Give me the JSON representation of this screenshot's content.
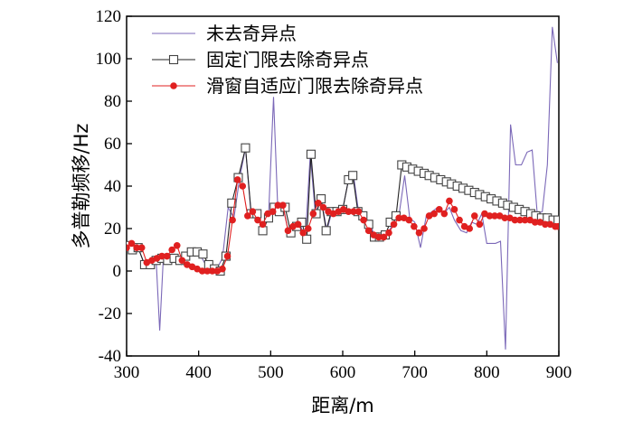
{
  "chart_data": {
    "type": "line",
    "title": "",
    "xlabel": "距离/m",
    "ylabel": "多普勒频移/Hz",
    "xlim": [
      300,
      900
    ],
    "ylim": [
      -40,
      120
    ],
    "x_ticks": [
      300,
      400,
      500,
      600,
      700,
      800,
      900
    ],
    "y_ticks": [
      -40,
      -20,
      0,
      20,
      40,
      60,
      80,
      100,
      120
    ],
    "grid": false,
    "legend_position": "top-left",
    "series": [
      {
        "name": "未去奇异点",
        "color": "#7b68b8",
        "marker": "none",
        "points": [
          [
            300,
            12
          ],
          [
            308,
            10
          ],
          [
            316,
            11
          ],
          [
            325,
            3
          ],
          [
            333,
            3
          ],
          [
            341,
            5
          ],
          [
            346,
            -28
          ],
          [
            351,
            6
          ],
          [
            359,
            5
          ],
          [
            368,
            7
          ],
          [
            376,
            3
          ],
          [
            384,
            6
          ],
          [
            392,
            9
          ],
          [
            400,
            9
          ],
          [
            408,
            4
          ],
          [
            416,
            3
          ],
          [
            425,
            1
          ],
          [
            433,
            6
          ],
          [
            441,
            30
          ],
          [
            449,
            25
          ],
          [
            457,
            44
          ],
          [
            465,
            58
          ],
          [
            473,
            26
          ],
          [
            481,
            27
          ],
          [
            489,
            19
          ],
          [
            497,
            25
          ],
          [
            504,
            82
          ],
          [
            510,
            28
          ],
          [
            517,
            30
          ],
          [
            525,
            18
          ],
          [
            533,
            21
          ],
          [
            540,
            23
          ],
          [
            548,
            15
          ],
          [
            555,
            55
          ],
          [
            562,
            27
          ],
          [
            570,
            34
          ],
          [
            578,
            19
          ],
          [
            585,
            28
          ],
          [
            592,
            28
          ],
          [
            600,
            29
          ],
          [
            608,
            43
          ],
          [
            615,
            45
          ],
          [
            622,
            28
          ],
          [
            630,
            26
          ],
          [
            638,
            22
          ],
          [
            645,
            16
          ],
          [
            653,
            16
          ],
          [
            661,
            16
          ],
          [
            670,
            23
          ],
          [
            678,
            26
          ],
          [
            686,
            45
          ],
          [
            693,
            25
          ],
          [
            700,
            23
          ],
          [
            708,
            11
          ],
          [
            716,
            26
          ],
          [
            724,
            28
          ],
          [
            732,
            30
          ],
          [
            740,
            27
          ],
          [
            748,
            30
          ],
          [
            755,
            24
          ],
          [
            764,
            19
          ],
          [
            772,
            18
          ],
          [
            779,
            23
          ],
          [
            786,
            22
          ],
          [
            793,
            27
          ],
          [
            800,
            13
          ],
          [
            806,
            13
          ],
          [
            812,
            13
          ],
          [
            819,
            14
          ],
          [
            826,
            -37
          ],
          [
            833,
            69
          ],
          [
            840,
            50
          ],
          [
            848,
            50
          ],
          [
            856,
            56
          ],
          [
            863,
            57
          ],
          [
            870,
            27
          ],
          [
            877,
            28
          ],
          [
            884,
            50
          ],
          [
            891,
            115
          ],
          [
            898,
            98
          ]
        ]
      },
      {
        "name": "固定门限去除奇异点",
        "color": "#222222",
        "marker": "square",
        "points": [
          [
            300,
            12
          ],
          [
            308,
            10
          ],
          [
            316,
            11
          ],
          [
            325,
            3
          ],
          [
            333,
            3
          ],
          [
            341,
            5
          ],
          [
            349,
            6
          ],
          [
            357,
            5
          ],
          [
            366,
            6
          ],
          [
            374,
            5
          ],
          [
            382,
            7
          ],
          [
            390,
            9
          ],
          [
            398,
            9
          ],
          [
            406,
            8
          ],
          [
            414,
            3
          ],
          [
            422,
            1
          ],
          [
            430,
            0
          ],
          [
            438,
            7
          ],
          [
            446,
            32
          ],
          [
            455,
            44
          ],
          [
            465,
            58
          ],
          [
            473,
            27
          ],
          [
            481,
            27
          ],
          [
            489,
            19
          ],
          [
            497,
            25
          ],
          [
            505,
            30
          ],
          [
            512,
            28
          ],
          [
            520,
            30
          ],
          [
            528,
            18
          ],
          [
            536,
            21
          ],
          [
            543,
            23
          ],
          [
            550,
            15
          ],
          [
            556,
            55
          ],
          [
            563,
            27
          ],
          [
            570,
            34
          ],
          [
            577,
            19
          ],
          [
            584,
            28
          ],
          [
            592,
            28
          ],
          [
            600,
            29
          ],
          [
            608,
            43
          ],
          [
            614,
            45
          ],
          [
            621,
            28
          ],
          [
            628,
            26
          ],
          [
            636,
            22
          ],
          [
            644,
            16
          ],
          [
            651,
            16
          ],
          [
            659,
            17
          ],
          [
            666,
            23
          ],
          [
            674,
            26
          ],
          [
            682,
            50
          ],
          [
            689,
            49
          ],
          [
            697,
            48
          ],
          [
            705,
            47
          ],
          [
            713,
            46
          ],
          [
            720,
            45
          ],
          [
            728,
            44
          ],
          [
            736,
            43
          ],
          [
            744,
            42
          ],
          [
            751,
            41
          ],
          [
            759,
            40
          ],
          [
            767,
            39
          ],
          [
            775,
            38
          ],
          [
            783,
            37
          ],
          [
            790,
            36
          ],
          [
            798,
            35
          ],
          [
            806,
            34
          ],
          [
            814,
            33
          ],
          [
            822,
            32
          ],
          [
            829,
            31
          ],
          [
            837,
            30
          ],
          [
            845,
            29
          ],
          [
            853,
            28
          ],
          [
            861,
            27
          ],
          [
            868,
            26
          ],
          [
            876,
            25
          ],
          [
            884,
            25
          ],
          [
            892,
            24
          ],
          [
            899,
            24
          ]
        ]
      },
      {
        "name": "滑窗自适应门限去除奇异点",
        "color": "#e02020",
        "marker": "circle",
        "points": [
          [
            300,
            11
          ],
          [
            307,
            13
          ],
          [
            314,
            11
          ],
          [
            321,
            11
          ],
          [
            328,
            4
          ],
          [
            335,
            5
          ],
          [
            342,
            6
          ],
          [
            349,
            7
          ],
          [
            356,
            7
          ],
          [
            363,
            10
          ],
          [
            370,
            12
          ],
          [
            377,
            5
          ],
          [
            384,
            3
          ],
          [
            391,
            2
          ],
          [
            398,
            1
          ],
          [
            405,
            0
          ],
          [
            412,
            0
          ],
          [
            419,
            0
          ],
          [
            426,
            0
          ],
          [
            433,
            1
          ],
          [
            440,
            7
          ],
          [
            447,
            24
          ],
          [
            454,
            43
          ],
          [
            461,
            40
          ],
          [
            468,
            26
          ],
          [
            475,
            28
          ],
          [
            482,
            24
          ],
          [
            489,
            22
          ],
          [
            496,
            27
          ],
          [
            503,
            28
          ],
          [
            510,
            31
          ],
          [
            517,
            31
          ],
          [
            524,
            19
          ],
          [
            531,
            21
          ],
          [
            538,
            22
          ],
          [
            545,
            18
          ],
          [
            552,
            20
          ],
          [
            559,
            27
          ],
          [
            566,
            32
          ],
          [
            573,
            30
          ],
          [
            580,
            28
          ],
          [
            587,
            27
          ],
          [
            594,
            28
          ],
          [
            601,
            29
          ],
          [
            608,
            28
          ],
          [
            615,
            28
          ],
          [
            622,
            28
          ],
          [
            629,
            24
          ],
          [
            636,
            19
          ],
          [
            643,
            17
          ],
          [
            650,
            16
          ],
          [
            657,
            16
          ],
          [
            664,
            18
          ],
          [
            671,
            22
          ],
          [
            678,
            25
          ],
          [
            685,
            25
          ],
          [
            692,
            24
          ],
          [
            699,
            21
          ],
          [
            706,
            18
          ],
          [
            713,
            20
          ],
          [
            720,
            26
          ],
          [
            727,
            27
          ],
          [
            734,
            29
          ],
          [
            741,
            27
          ],
          [
            748,
            33
          ],
          [
            755,
            29
          ],
          [
            762,
            24
          ],
          [
            769,
            21
          ],
          [
            776,
            20
          ],
          [
            783,
            26
          ],
          [
            790,
            22
          ],
          [
            797,
            27
          ],
          [
            804,
            26
          ],
          [
            811,
            26
          ],
          [
            818,
            26
          ],
          [
            825,
            25
          ],
          [
            832,
            25
          ],
          [
            839,
            24
          ],
          [
            846,
            24
          ],
          [
            853,
            24
          ],
          [
            860,
            24
          ],
          [
            867,
            23
          ],
          [
            874,
            23
          ],
          [
            881,
            22
          ],
          [
            888,
            22
          ],
          [
            895,
            21
          ],
          [
            899,
            21
          ]
        ]
      }
    ]
  }
}
